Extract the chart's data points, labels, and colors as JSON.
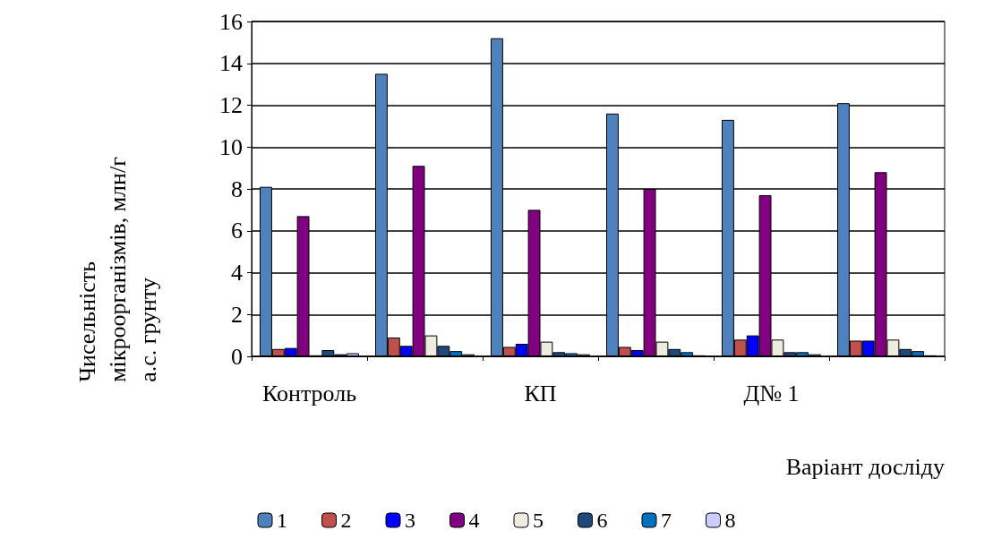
{
  "chart_data": {
    "type": "bar",
    "ylabel": "Чисельність мікроорганізмів, млн/г а.с. грунту",
    "xlabel": "Варіант досліду",
    "categories": [
      "Контроль",
      null,
      "КП",
      null,
      "Д№ 1",
      null
    ],
    "series": [
      {
        "name": "1",
        "color": "#4f81bd",
        "values": [
          8.1,
          13.5,
          15.2,
          11.6,
          11.3,
          12.1
        ]
      },
      {
        "name": "2",
        "color": "#c0504d",
        "values": [
          0.35,
          0.9,
          0.45,
          0.45,
          0.8,
          0.75
        ]
      },
      {
        "name": "3",
        "color": "#0000ff",
        "values": [
          0.4,
          0.5,
          0.6,
          0.3,
          1.0,
          0.75
        ]
      },
      {
        "name": "4",
        "color": "#800080",
        "values": [
          6.7,
          9.1,
          7.0,
          8.0,
          7.7,
          8.8
        ]
      },
      {
        "name": "5",
        "color": "#eeece1",
        "values": [
          0.05,
          1.0,
          0.7,
          0.7,
          0.8,
          0.8
        ]
      },
      {
        "name": "6",
        "color": "#1f497d",
        "values": [
          0.3,
          0.5,
          0.2,
          0.35,
          0.2,
          0.35
        ]
      },
      {
        "name": "7",
        "color": "#0070c0",
        "values": [
          0.1,
          0.25,
          0.15,
          0.2,
          0.2,
          0.25
        ]
      },
      {
        "name": "8",
        "color": "#ccccff",
        "values": [
          0.15,
          0.1,
          0.1,
          0.05,
          0.1,
          0.05
        ]
      }
    ],
    "ylim": [
      0,
      16
    ],
    "yticks": [
      0,
      2,
      4,
      6,
      8,
      10,
      12,
      14,
      16
    ],
    "grid": "y",
    "legend": "bottom"
  }
}
